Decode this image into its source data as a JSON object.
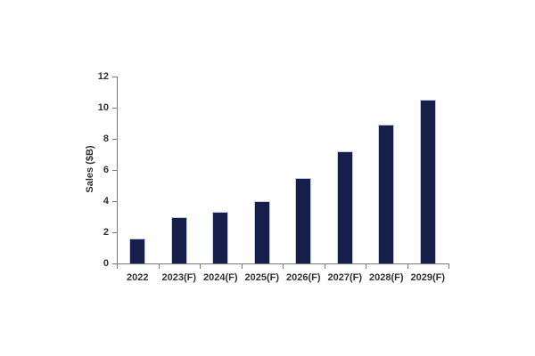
{
  "chart_data": {
    "type": "bar",
    "title": "",
    "xlabel": "",
    "ylabel": "Sales ($B)",
    "categories": [
      "2022",
      "2023(F)",
      "2024(F)",
      "2025(F)",
      "2026(F)",
      "2027(F)",
      "2028(F)",
      "2029(F)"
    ],
    "values": [
      1.6,
      3.0,
      3.3,
      4.0,
      5.5,
      7.2,
      8.9,
      10.5
    ],
    "ylim": [
      0,
      12
    ],
    "yticks": [
      0,
      2,
      4,
      6,
      8,
      10,
      12
    ],
    "grid": "off",
    "legend": "none",
    "bar_color": "#161e4a",
    "bar_border_color": "#c6cce2",
    "axis_color": "#7a7a7a",
    "text_color": "#303030",
    "background_color": "#ffffff"
  }
}
